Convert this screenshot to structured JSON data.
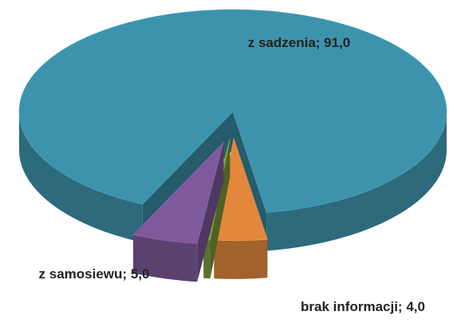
{
  "chart_data": {
    "type": "pie",
    "is_3d": true,
    "exploded": true,
    "categories": [
      "z sadzenia",
      "brak informacji",
      null,
      "z samosiewu"
    ],
    "values": [
      91.0,
      4.0,
      0.5,
      5.0
    ],
    "value_labels": [
      "91,0",
      "4,0",
      null,
      "5,0"
    ],
    "label_separator": "; ",
    "colors": [
      "#3e93ac",
      "#e2873c",
      "#7e9c3e",
      "#7e5a9c"
    ]
  }
}
